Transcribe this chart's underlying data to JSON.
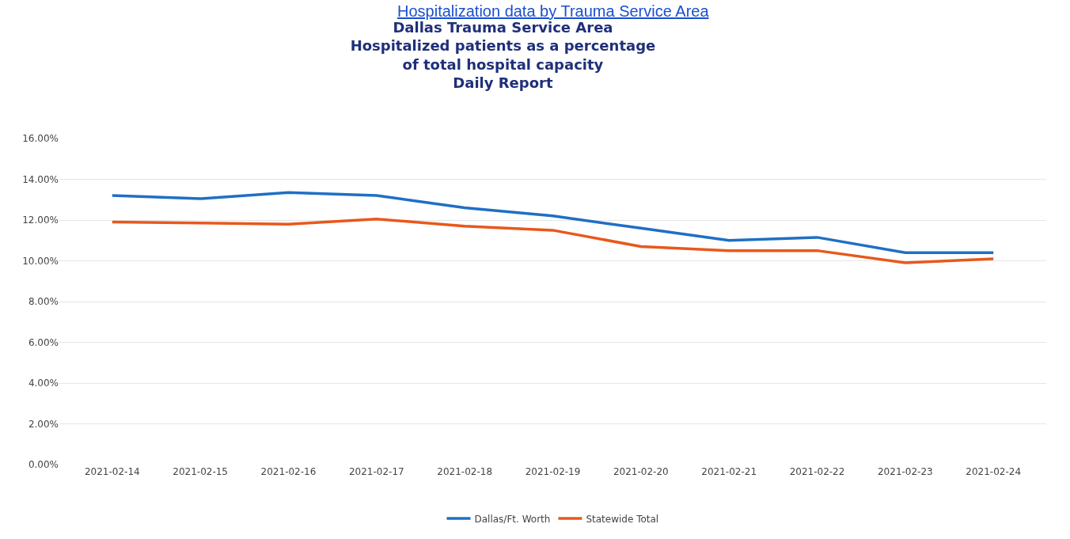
{
  "chart_data": {
    "type": "line",
    "title": "Dallas Trauma Service Area\nHospitalized patients as a percentage\nof total hospital capacity\nDaily Report",
    "annotations": [
      "Hospitalization data by Trauma Service Area"
    ],
    "categories": [
      "2021-02-14",
      "2021-02-15",
      "2021-02-16",
      "2021-02-17",
      "2021-02-18",
      "2021-02-19",
      "2021-02-20",
      "2021-02-21",
      "2021-02-22",
      "2021-02-23",
      "2021-02-24"
    ],
    "series": [
      {
        "name": "Dallas/Ft. Worth",
        "color": "#1f6fc5",
        "values": [
          13.2,
          13.05,
          13.35,
          13.2,
          12.6,
          12.2,
          11.6,
          11.0,
          11.15,
          10.4,
          10.4
        ]
      },
      {
        "name": "Statewide Total",
        "color": "#e8581c",
        "values": [
          11.9,
          11.85,
          11.8,
          12.05,
          11.7,
          11.5,
          10.7,
          10.5,
          10.5,
          9.9,
          10.1
        ]
      }
    ],
    "ylim": [
      0,
      16
    ],
    "yticks": [
      {
        "value": 0,
        "label": "0.00%"
      },
      {
        "value": 2,
        "label": "2.00%"
      },
      {
        "value": 4,
        "label": "4.00%"
      },
      {
        "value": 6,
        "label": "6.00%"
      },
      {
        "value": 8,
        "label": "8.00%"
      },
      {
        "value": 10,
        "label": "10.00%"
      },
      {
        "value": 12,
        "label": "12.00%"
      },
      {
        "value": 14,
        "label": "14.00%"
      },
      {
        "value": 16,
        "label": "16.00%"
      }
    ],
    "grid": "y",
    "legend": "bottom",
    "marker": "none",
    "line_style": "solid"
  }
}
